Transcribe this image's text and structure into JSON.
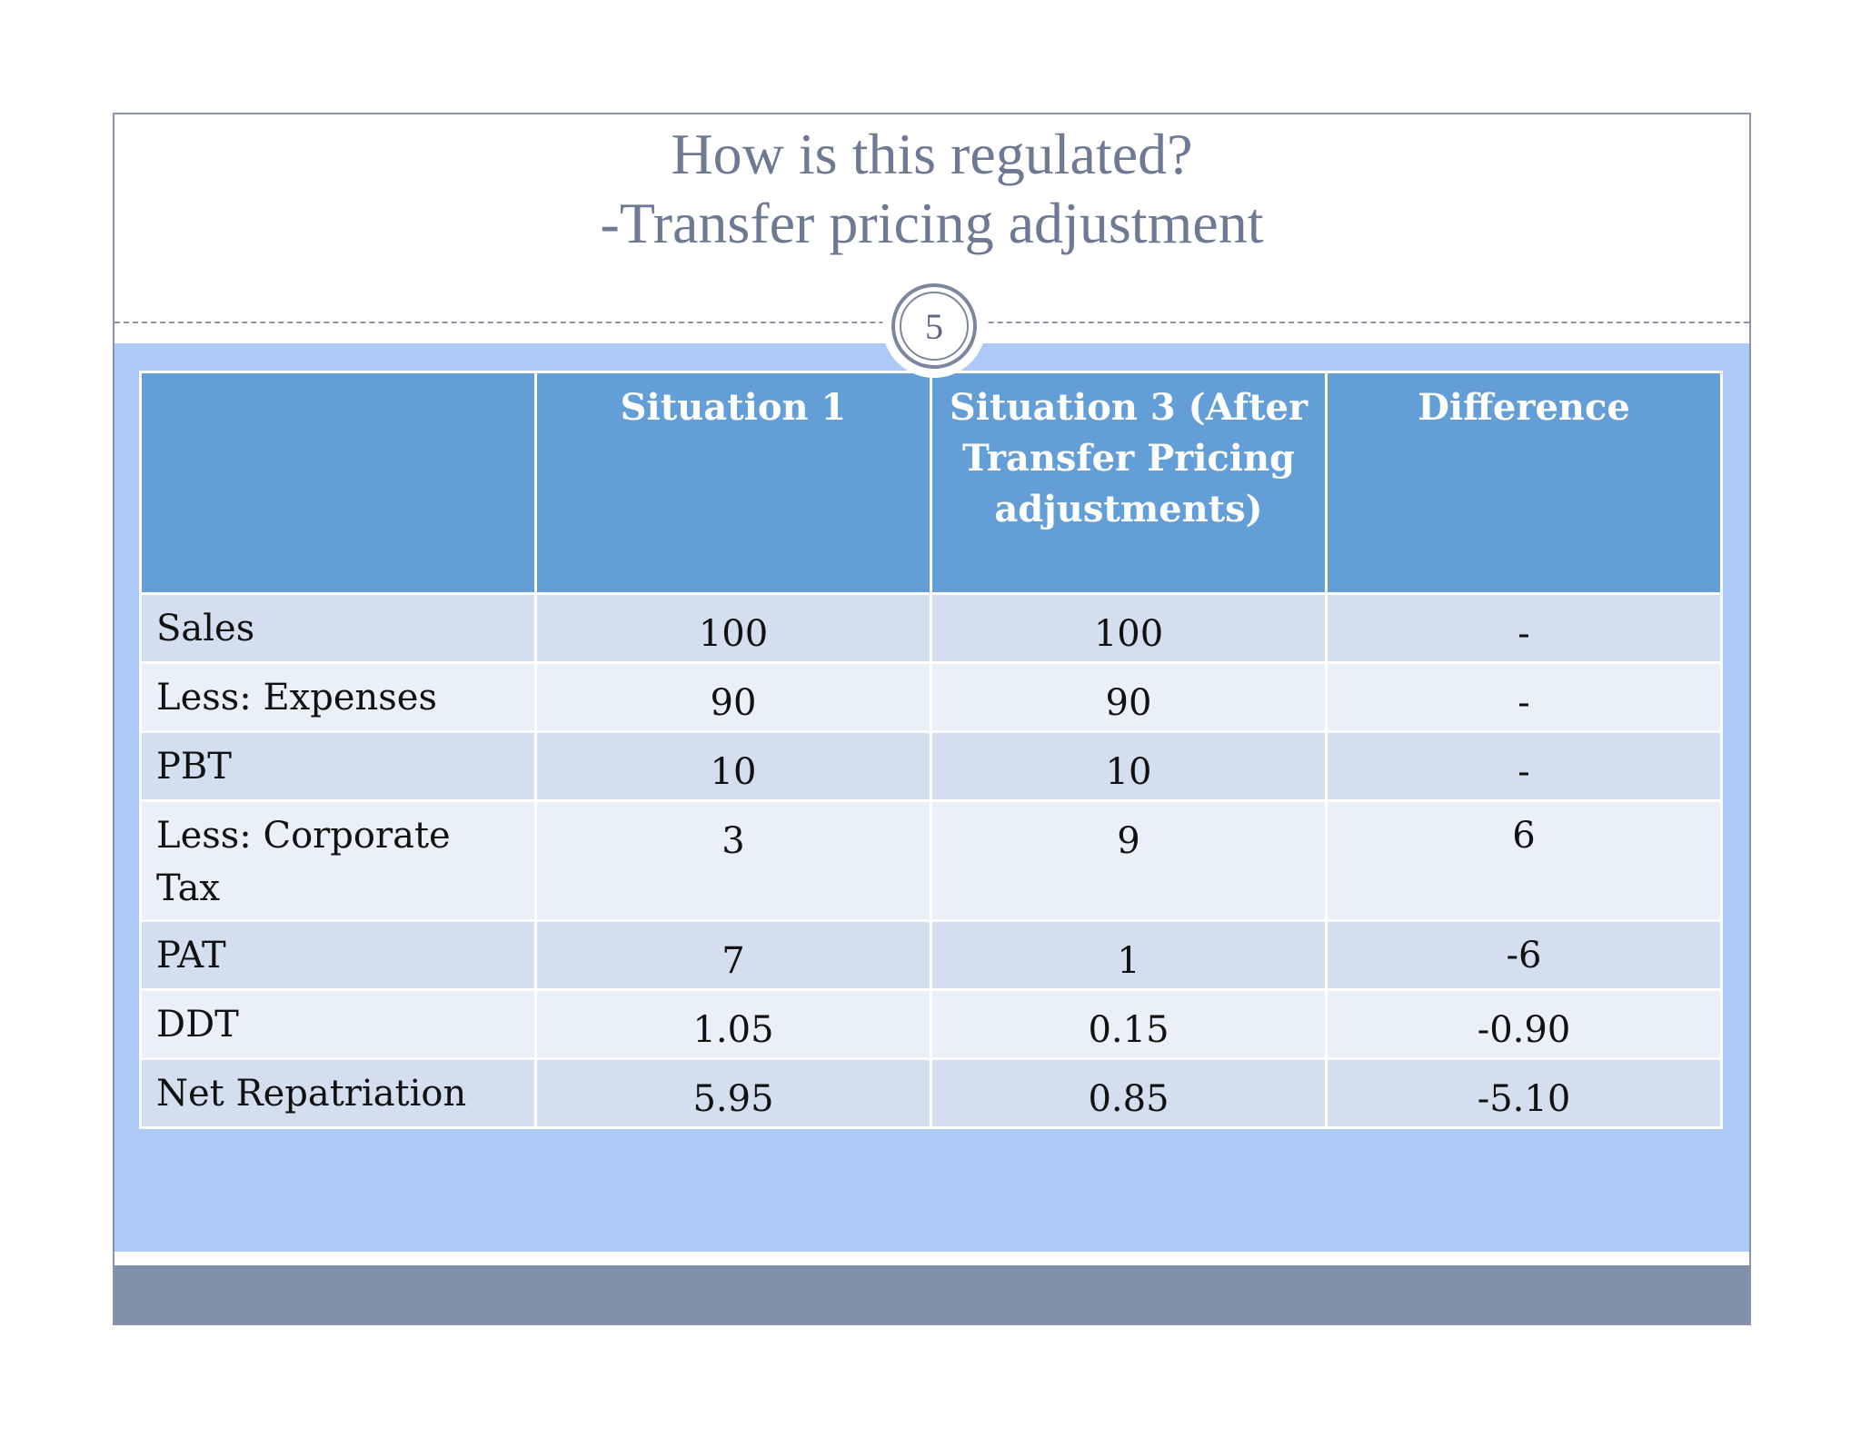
{
  "slide": {
    "title_line1": "How is this regulated?",
    "title_line2": "-Transfer pricing adjustment",
    "page_number": "5"
  },
  "table": {
    "headers": [
      "",
      "Situation 1",
      "Situation 3 (After Transfer Pricing adjustments)",
      "Difference"
    ],
    "rows": [
      {
        "label": "Sales",
        "s1": "100",
        "s3": "100",
        "diff": "-"
      },
      {
        "label": "Less: Expenses",
        "s1": "90",
        "s3": "90",
        "diff": "-"
      },
      {
        "label": "PBT",
        "s1": "10",
        "s3": "10",
        "diff": "-"
      },
      {
        "label": "Less: Corporate Tax",
        "s1": "3",
        "s3": "9",
        "diff": "6"
      },
      {
        "label": "PAT",
        "s1": "7",
        "s3": "1",
        "diff": "-6"
      },
      {
        "label": "DDT",
        "s1": "1.05",
        "s3": "0.15",
        "diff": "-0.90"
      },
      {
        "label": "Net Repatriation",
        "s1": "5.95",
        "s3": "0.85",
        "diff": "-5.10"
      }
    ]
  },
  "colors": {
    "title_text": "#6e7a94",
    "header_fill": "#639fd6",
    "content_bg": "#adc9f7",
    "footer_bar": "#8190ab",
    "row_odd": "#d3dfef",
    "row_even": "#eaf0f8"
  }
}
